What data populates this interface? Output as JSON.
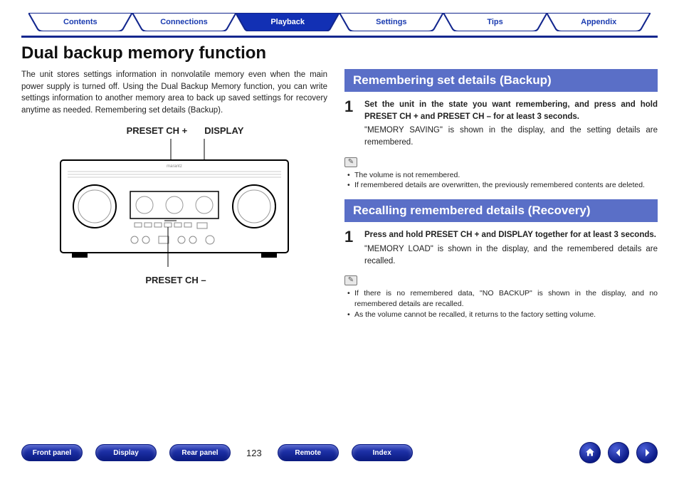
{
  "colors": {
    "accent": "#13278e",
    "tab_active_fill": "#1230b4",
    "tab_border": "#13278e",
    "section_head_bg": "#5a6fc7",
    "section_head_text": "#ffffff",
    "nav_btn_grad_top": "#2a3fc0",
    "nav_btn_grad_bot": "#0a1a80",
    "body_text": "#222222"
  },
  "tabs": [
    {
      "label": "Contents",
      "active": false
    },
    {
      "label": "Connections",
      "active": false
    },
    {
      "label": "Playback",
      "active": true
    },
    {
      "label": "Settings",
      "active": false
    },
    {
      "label": "Tips",
      "active": false
    },
    {
      "label": "Appendix",
      "active": false
    }
  ],
  "title": "Dual backup memory function",
  "intro": "The unit stores settings information in nonvolatile memory even when the main power supply is turned off. Using the Dual Backup Memory function, you can write settings information to another memory area to back up saved settings for recovery anytime as needed. Remembering set details (Backup).",
  "device_labels": {
    "top_left": "PRESET CH +",
    "top_right": "DISPLAY",
    "bottom": "PRESET CH –"
  },
  "sections": {
    "backup": {
      "heading": "Remembering set details (Backup)",
      "step_num": "1",
      "step_bold": "Set the unit in the state you want remembering, and press and hold PRESET CH + and PRESET CH – for at least 3 seconds.",
      "step_desc": "\"MEMORY SAVING\" is shown in the display, and the setting details are remembered.",
      "notes": [
        "The volume is not remembered.",
        "If remembered details are overwritten, the previously remembered contents are deleted."
      ]
    },
    "recovery": {
      "heading": "Recalling remembered details (Recovery)",
      "step_num": "1",
      "step_bold": "Press and hold PRESET CH + and DISPLAY together for at least 3 seconds.",
      "step_desc": "\"MEMORY LOAD\" is shown in the display, and the remembered details are recalled.",
      "notes": [
        "If there is no remembered data, \"NO BACKUP\" is shown in the display, and no remembered details are recalled.",
        "As the volume cannot be recalled, it returns to the factory setting volume."
      ]
    }
  },
  "bottom_nav": {
    "left": [
      "Front panel",
      "Display",
      "Rear panel"
    ],
    "page_number": "123",
    "right": [
      "Remote",
      "Index"
    ],
    "icons": [
      "home",
      "prev",
      "next"
    ]
  }
}
